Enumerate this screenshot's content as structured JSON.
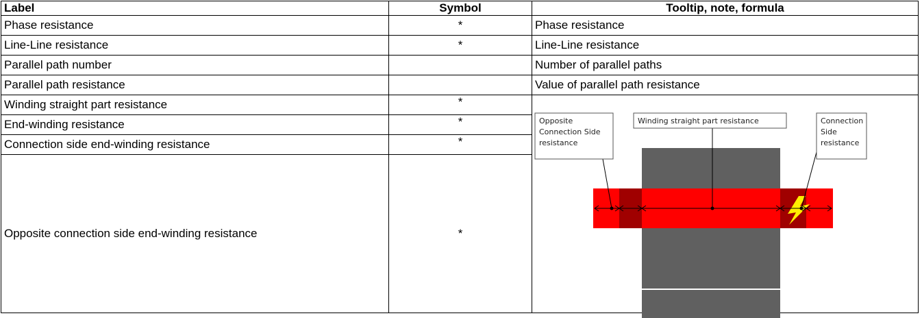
{
  "table": {
    "header": [
      "Label",
      "Symbol",
      "Tooltip, note, formula"
    ],
    "rows": [
      {
        "label": "Phase resistance",
        "symbol": "*",
        "note": "Phase resistance"
      },
      {
        "label": "Line-Line resistance",
        "symbol": "*",
        "note": "Line-Line resistance"
      },
      {
        "label": "Parallel path number",
        "note": "Number of parallel paths"
      },
      {
        "label": "Parallel path resistance",
        "note": "Value of parallel path resistance"
      },
      {
        "label": "Winding straight part resistance",
        "symbol": "*"
      },
      {
        "label": "End-winding resistance",
        "symbol": "*"
      },
      {
        "label": "Connection side end-winding resistance",
        "symbol": "*"
      },
      {
        "label": "Opposite connection side end-winding resistance",
        "symbol": "*"
      }
    ]
  },
  "diagram": {
    "callouts": [
      {
        "lines": [
          "Opposite",
          "Connection Side",
          "resistance"
        ]
      },
      {
        "lines": [
          "Winding straight part resistance"
        ]
      },
      {
        "lines": [
          "Connection",
          "Side",
          "resistance"
        ]
      }
    ]
  }
}
